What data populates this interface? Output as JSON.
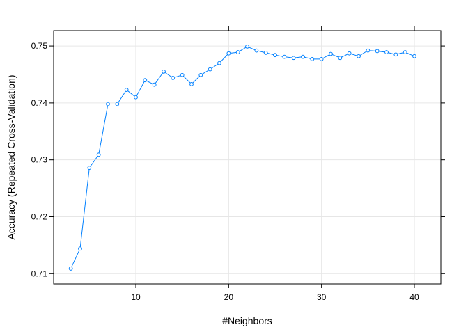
{
  "chart_data": {
    "type": "line",
    "title": "",
    "xlabel": "#Neighbors",
    "ylabel": "Accuracy (Repeated Cross-Validation)",
    "xlim": [
      1.15,
      42.85
    ],
    "ylim": [
      0.7082,
      0.7527
    ],
    "xticks": [
      10,
      20,
      30,
      40
    ],
    "yticks": [
      0.71,
      0.72,
      0.73,
      0.74,
      0.75
    ],
    "ytick_labels": [
      "0.71",
      "0.72",
      "0.73",
      "0.74",
      "0.75"
    ],
    "grid": true,
    "series": [
      {
        "color": "#0080ff",
        "marker": "circle",
        "x": [
          3,
          4,
          5,
          6,
          7,
          8,
          9,
          10,
          11,
          12,
          13,
          14,
          15,
          16,
          17,
          18,
          19,
          20,
          21,
          22,
          23,
          24,
          25,
          26,
          27,
          28,
          29,
          30,
          31,
          32,
          33,
          34,
          35,
          36,
          37,
          38,
          39,
          40
        ],
        "values": [
          0.7109,
          0.7144,
          0.7286,
          0.7309,
          0.7398,
          0.7398,
          0.7423,
          0.741,
          0.744,
          0.7432,
          0.7455,
          0.7444,
          0.7449,
          0.7433,
          0.7449,
          0.7459,
          0.747,
          0.7487,
          0.7489,
          0.7499,
          0.7492,
          0.7488,
          0.7484,
          0.7481,
          0.7479,
          0.7481,
          0.7477,
          0.7477,
          0.7486,
          0.7479,
          0.7487,
          0.7482,
          0.7492,
          0.7491,
          0.7489,
          0.7485,
          0.7489,
          0.7482
        ]
      }
    ]
  }
}
